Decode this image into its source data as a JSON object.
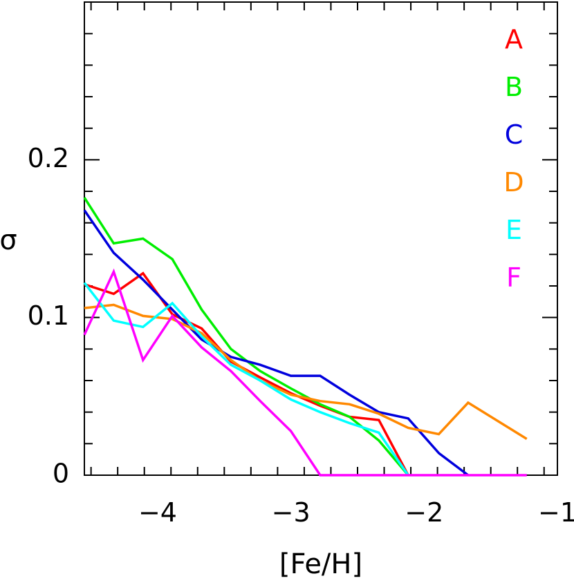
{
  "chart_data": {
    "type": "line",
    "xlabel": "[Fe/H]",
    "ylabel": "σ",
    "xlim": [
      -4.55,
      -1.0
    ],
    "ylim": [
      0,
      0.3
    ],
    "xticks": [
      {
        "value": -4,
        "label": "−4"
      },
      {
        "value": -3,
        "label": "−3"
      },
      {
        "value": -2,
        "label": "−2"
      },
      {
        "value": -1,
        "label": "−1"
      }
    ],
    "yticks": [
      {
        "value": 0,
        "label": "0"
      },
      {
        "value": 0.1,
        "label": "0.1"
      },
      {
        "value": 0.2,
        "label": "0.2"
      }
    ],
    "grid": false,
    "legend_position": "top-right",
    "series": [
      {
        "name": "A",
        "color": "#ff0000",
        "x": [
          -4.55,
          -4.33,
          -4.11,
          -3.89,
          -3.67,
          -3.45,
          -3.23,
          -3.0,
          -2.78,
          -2.56,
          -2.34,
          -2.12
        ],
        "y": [
          0.121,
          0.115,
          0.128,
          0.102,
          0.093,
          0.072,
          0.062,
          0.052,
          0.044,
          0.037,
          0.035,
          0.0
        ]
      },
      {
        "name": "B",
        "color": "#00ee00",
        "x": [
          -4.55,
          -4.33,
          -4.11,
          -3.89,
          -3.67,
          -3.45,
          -3.23,
          -3.0,
          -2.78,
          -2.56,
          -2.34,
          -2.12
        ],
        "y": [
          0.176,
          0.147,
          0.15,
          0.137,
          0.105,
          0.08,
          0.066,
          0.055,
          0.045,
          0.037,
          0.022,
          0.0
        ]
      },
      {
        "name": "C",
        "color": "#0000dd",
        "x": [
          -4.55,
          -4.33,
          -4.11,
          -3.89,
          -3.67,
          -3.45,
          -3.23,
          -3.0,
          -2.78,
          -2.56,
          -2.34,
          -2.12,
          -1.89,
          -1.67
        ],
        "y": [
          0.168,
          0.141,
          0.124,
          0.105,
          0.086,
          0.075,
          0.07,
          0.063,
          0.063,
          0.051,
          0.04,
          0.036,
          0.014,
          0.0
        ]
      },
      {
        "name": "D",
        "color": "#ff8800",
        "x": [
          -4.55,
          -4.33,
          -4.11,
          -3.89,
          -3.67,
          -3.45,
          -3.23,
          -3.0,
          -2.78,
          -2.56,
          -2.34,
          -2.12,
          -1.89,
          -1.67,
          -1.23
        ],
        "y": [
          0.106,
          0.108,
          0.101,
          0.099,
          0.09,
          0.073,
          0.06,
          0.051,
          0.047,
          0.045,
          0.039,
          0.03,
          0.026,
          0.046,
          0.023
        ]
      },
      {
        "name": "E",
        "color": "#00ffff",
        "x": [
          -4.55,
          -4.33,
          -4.11,
          -3.89,
          -3.67,
          -3.45,
          -3.23,
          -3.0,
          -2.78,
          -2.56,
          -2.34,
          -2.12
        ],
        "y": [
          0.122,
          0.098,
          0.094,
          0.109,
          0.088,
          0.07,
          0.06,
          0.048,
          0.04,
          0.033,
          0.027,
          0.0
        ]
      },
      {
        "name": "F",
        "color": "#ff00ff",
        "x": [
          -4.55,
          -4.33,
          -4.11,
          -3.89,
          -3.67,
          -3.45,
          -3.23,
          -3.0,
          -2.78,
          -2.56,
          -2.34,
          -2.12,
          -1.89,
          -1.67,
          -1.45,
          -1.23
        ],
        "y": [
          0.089,
          0.129,
          0.073,
          0.101,
          0.081,
          0.066,
          0.047,
          0.028,
          0.0,
          0.0,
          0.0,
          0.0,
          0.0,
          0.0,
          0.0,
          0.0
        ]
      }
    ]
  }
}
